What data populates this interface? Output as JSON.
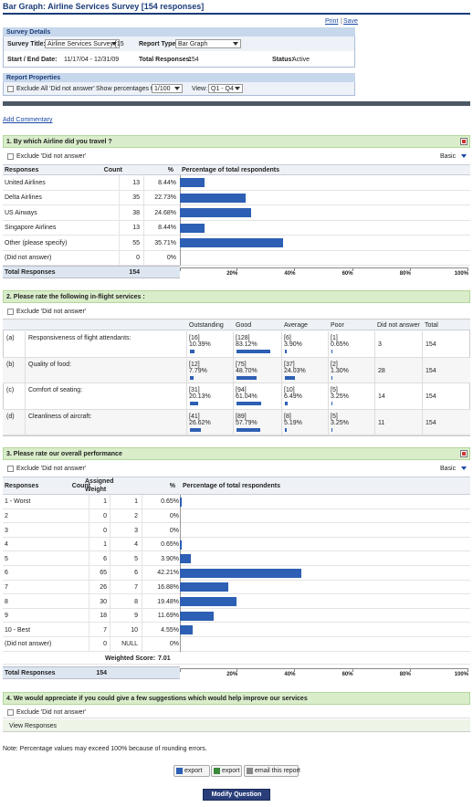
{
  "header": {
    "title": "Bar Graph:  Airline Services Survey [154 responses]",
    "print": "Print",
    "separator": "|",
    "save": "Save"
  },
  "survey_details": {
    "title": "Survey Details",
    "survey_title_label": "Survey Title:",
    "survey_title_value": "Airline Services Survey [15",
    "report_type_label": "Report Type:",
    "report_type_value": "Bar Graph",
    "dates_label": "Start / End Date:",
    "dates_value": "11/17/04 - 12/31/09",
    "total_label": "Total Responses:",
    "total_value": 154,
    "status_label": "Status:",
    "status_value": "Active"
  },
  "report_properties": {
    "title": "Report Properties",
    "exclude": "Exclude All 'Did not answer'",
    "show_pct_label": "Show percentages to:",
    "show_pct_value": "1/100",
    "view_label": "View:",
    "view_value": "Q1 - Q4"
  },
  "add_commentary": "Add Commentary",
  "q1": {
    "title": "1. By which Airline did you travel ?",
    "exclude": "Exclude 'Did not answer'",
    "view": "Basic",
    "columns": [
      "Responses",
      "Count",
      "%",
      "Percentage of total respondents"
    ],
    "rows": [
      {
        "label": "United Airlines",
        "count": 13,
        "percent": 8.44,
        "percent_label": "8.44%"
      },
      {
        "label": "Delta Airlines",
        "count": 35,
        "percent": 22.73,
        "percent_label": "22.73%"
      },
      {
        "label": "US Airways",
        "count": 38,
        "percent": 24.68,
        "percent_label": "24.68%"
      },
      {
        "label": "Singapore Airlines",
        "count": 13,
        "percent": 8.44,
        "percent_label": "8.44%"
      },
      {
        "label": "Other (please specify)",
        "count": 55,
        "percent": 35.71,
        "percent_label": "35.71%"
      },
      {
        "label": "(Did not answer)",
        "count": 0,
        "percent": 0,
        "percent_label": "0%"
      }
    ],
    "total_label": "Total Responses",
    "total": 154,
    "xlim": [
      0,
      100
    ],
    "xticks": [
      {
        "value": 20,
        "label": "20%"
      },
      {
        "value": 40,
        "label": "40%"
      },
      {
        "value": 60,
        "label": "60%"
      },
      {
        "value": 80,
        "label": "80%"
      },
      {
        "value": 100,
        "label": "100%"
      }
    ]
  },
  "q2": {
    "title": "2.  Please rate the following in-flight services :",
    "exclude": "Exclude 'Did not answer'",
    "columns": [
      "Outstanding",
      "Good",
      "Average",
      "Poor",
      "Did not answer",
      "Total"
    ],
    "rows": [
      {
        "letter": "(a)",
        "label": "Responsiveness of flight attendants:",
        "cells": [
          {
            "count_label": "[16]",
            "percent": 10.39,
            "percent_label": "10.39%"
          },
          {
            "count_label": "[128]",
            "percent": 83.12,
            "percent_label": "83.12%"
          },
          {
            "count_label": "[6]",
            "percent": 3.9,
            "percent_label": "3.90%"
          },
          {
            "count_label": "[1]",
            "percent": 0.65,
            "percent_label": "0.65%"
          }
        ],
        "did_not_answer": 3,
        "total": 154
      },
      {
        "letter": "(b)",
        "label": "Quality of food:",
        "cells": [
          {
            "count_label": "[12]",
            "percent": 7.79,
            "percent_label": "7.79%"
          },
          {
            "count_label": "[75]",
            "percent": 48.7,
            "percent_label": "48.70%"
          },
          {
            "count_label": "[37]",
            "percent": 24.03,
            "percent_label": "24.03%"
          },
          {
            "count_label": "[2]",
            "percent": 1.3,
            "percent_label": "1.30%"
          }
        ],
        "did_not_answer": 28,
        "total": 154
      },
      {
        "letter": "(c)",
        "label": "Comfort of seating:",
        "cells": [
          {
            "count_label": "[31]",
            "percent": 20.13,
            "percent_label": "20.13%"
          },
          {
            "count_label": "[94]",
            "percent": 61.04,
            "percent_label": "61.04%"
          },
          {
            "count_label": "[10]",
            "percent": 6.49,
            "percent_label": "6.49%"
          },
          {
            "count_label": "[5]",
            "percent": 3.25,
            "percent_label": "3.25%"
          }
        ],
        "did_not_answer": 14,
        "total": 154
      },
      {
        "letter": "(d)",
        "label": "Cleanliness of aircraft:",
        "cells": [
          {
            "count_label": "[41]",
            "percent": 26.62,
            "percent_label": "26.62%"
          },
          {
            "count_label": "[89]",
            "percent": 57.79,
            "percent_label": "57.79%"
          },
          {
            "count_label": "[8]",
            "percent": 5.19,
            "percent_label": "5.19%"
          },
          {
            "count_label": "[5]",
            "percent": 3.25,
            "percent_label": "3.25%"
          }
        ],
        "did_not_answer": 11,
        "total": 154
      }
    ]
  },
  "q3": {
    "title": "3.  Please rate our overall performance",
    "exclude": "Exclude 'Did not answer'",
    "view": "Basic",
    "columns": [
      "Responses",
      "Count",
      "Assigned Weight",
      "%",
      "Percentage of total respondents"
    ],
    "rows": [
      {
        "label": "1 - Worst",
        "count": 1,
        "weight": 1,
        "percent": 0.65,
        "percent_label": "0.65%"
      },
      {
        "label": "2",
        "count": 0,
        "weight": 2,
        "percent": 0,
        "percent_label": "0%"
      },
      {
        "label": "3",
        "count": 0,
        "weight": 3,
        "percent": 0,
        "percent_label": "0%"
      },
      {
        "label": "4",
        "count": 1,
        "weight": 4,
        "percent": 0.65,
        "percent_label": "0.65%"
      },
      {
        "label": "5",
        "count": 6,
        "weight": 5,
        "percent": 3.9,
        "percent_label": "3.90%"
      },
      {
        "label": "6",
        "count": 65,
        "weight": 6,
        "percent": 42.21,
        "percent_label": "42.21%"
      },
      {
        "label": "7",
        "count": 26,
        "weight": 7,
        "percent": 16.88,
        "percent_label": "16.88%"
      },
      {
        "label": "8",
        "count": 30,
        "weight": 8,
        "percent": 19.48,
        "percent_label": "19.48%"
      },
      {
        "label": "9",
        "count": 18,
        "weight": 9,
        "percent": 11.69,
        "percent_label": "11.69%"
      },
      {
        "label": "10 - Best",
        "count": 7,
        "weight": 10,
        "percent": 4.55,
        "percent_label": "4.55%"
      },
      {
        "label": "(Did not answer)",
        "count": 0,
        "weight": "NULL",
        "percent": 0,
        "percent_label": "0%"
      }
    ],
    "weighted_score_label": "Weighted Score:",
    "weighted_score": 7.01,
    "total_label": "Total Responses",
    "total": 154,
    "xlim": [
      0,
      100
    ],
    "xticks": [
      {
        "value": 20,
        "label": "20%"
      },
      {
        "value": 40,
        "label": "40%"
      },
      {
        "value": 60,
        "label": "60%"
      },
      {
        "value": 80,
        "label": "80%"
      },
      {
        "value": 100,
        "label": "100%"
      }
    ]
  },
  "q4": {
    "title": "4. We would appreciate if you could give a few suggestions which would help improve our services",
    "exclude": "Exclude 'Did not answer'",
    "view_responses": "View Responses"
  },
  "note": "Note: Percentage values may exceed 100% because of rounding errors.",
  "buttons": {
    "export_word": "export",
    "export_excel": "export",
    "email": "email this report",
    "modify": "Modify Question"
  }
}
